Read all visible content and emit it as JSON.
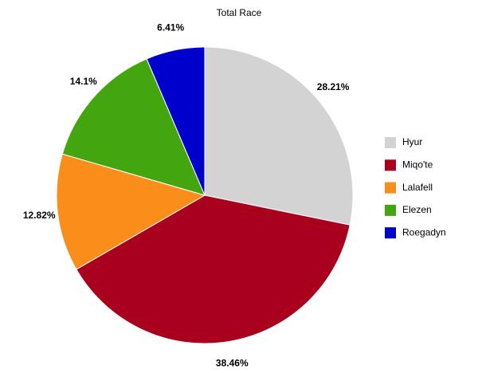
{
  "chart_data": {
    "type": "pie",
    "title": "Total Race",
    "categories": [
      "Hyur",
      "Miqo'te",
      "Lalafell",
      "Elezen",
      "Roegadyn"
    ],
    "values": [
      28.21,
      38.46,
      12.82,
      14.1,
      6.41
    ],
    "value_labels": [
      "28.21%",
      "38.46%",
      "12.82%",
      "14.1%",
      "6.41%"
    ],
    "colors": [
      "#d3d3d3",
      "#a8001d",
      "#fb8e1a",
      "#43a60e",
      "#0000cc"
    ],
    "legend": "right"
  }
}
